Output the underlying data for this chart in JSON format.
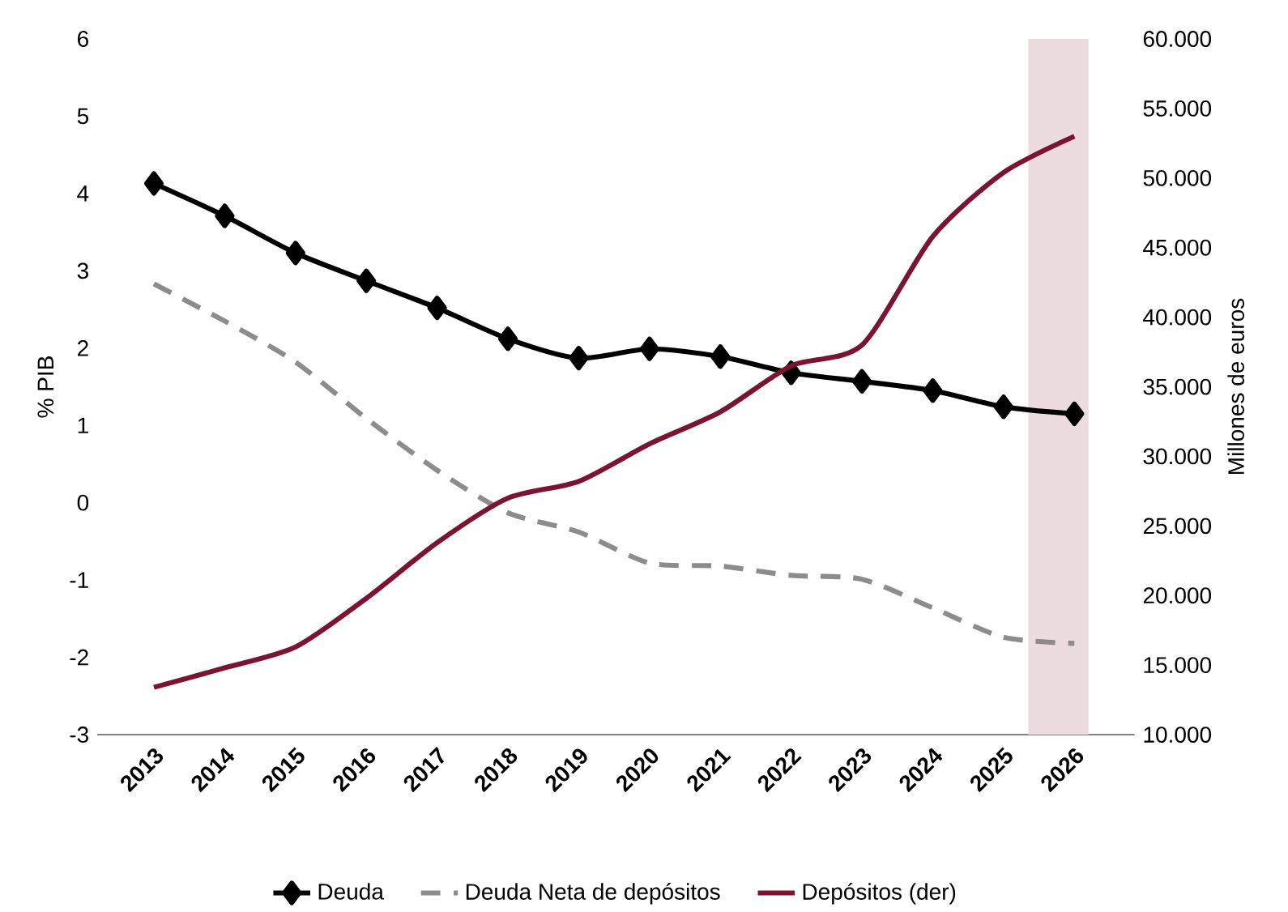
{
  "chart_data": {
    "type": "line",
    "x": [
      2013,
      2014,
      2015,
      2016,
      2017,
      2018,
      2019,
      2020,
      2021,
      2022,
      2023,
      2024,
      2025,
      2026
    ],
    "xlim": [
      2012.2,
      2026.85
    ],
    "xticks": [
      2013,
      2014,
      2015,
      2016,
      2017,
      2018,
      2019,
      2020,
      2021,
      2022,
      2023,
      2024,
      2025,
      2026
    ],
    "ylim": [
      -3,
      6
    ],
    "yticks": [
      -3,
      -2,
      -1,
      0,
      1,
      2,
      3,
      4,
      5,
      6
    ],
    "y2lim": [
      10000,
      60000
    ],
    "y2ticks": [
      {
        "value": 10000,
        "label": "10.000"
      },
      {
        "value": 15000,
        "label": "15.000"
      },
      {
        "value": 20000,
        "label": "20.000"
      },
      {
        "value": 25000,
        "label": "25.000"
      },
      {
        "value": 30000,
        "label": "30.000"
      },
      {
        "value": 35000,
        "label": "35.000"
      },
      {
        "value": 40000,
        "label": "40.000"
      },
      {
        "value": 45000,
        "label": "45.000"
      },
      {
        "value": 50000,
        "label": "50.000"
      },
      {
        "value": 55000,
        "label": "55.000"
      },
      {
        "value": 60000,
        "label": "60.000"
      }
    ],
    "ylabel": "% PIB",
    "y2label": "Millones de euros",
    "legend": "bottom",
    "bands": [
      {
        "axis": "x",
        "from": 2025.35,
        "to": 2026.2,
        "color": "#ecdce0"
      }
    ],
    "series": [
      {
        "name": "Deuda",
        "color": "#000000",
        "marker": "diamond",
        "line_style": "solid",
        "values": [
          4.13,
          3.71,
          3.23,
          2.87,
          2.52,
          2.12,
          1.87,
          1.99,
          1.89,
          1.68,
          1.57,
          1.45,
          1.24,
          1.15
        ]
      },
      {
        "name": "Deuda Neta de depósitos",
        "color": "#8c8c8c",
        "marker": "none",
        "line_style": "dashed",
        "values": [
          2.83,
          2.35,
          1.82,
          1.09,
          0.42,
          -0.13,
          -0.38,
          -0.78,
          -0.82,
          -0.94,
          -0.99,
          -1.36,
          -1.74,
          -1.82
        ]
      },
      {
        "name": "Depósitos (der)",
        "color": "#7b1430",
        "marker": "none",
        "line_style": "solid",
        "axis": "y2",
        "values": [
          13400,
          14800,
          16300,
          19800,
          23800,
          27000,
          28200,
          30900,
          33200,
          36500,
          38000,
          45800,
          50400,
          53000
        ]
      }
    ]
  }
}
